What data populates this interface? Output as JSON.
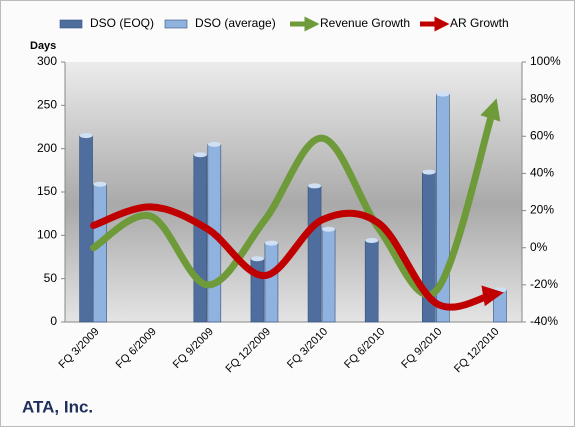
{
  "chart_data": {
    "type": "bar-line",
    "title": "ATA, Inc.",
    "ylabel": "Days",
    "categories": [
      "FQ 3/2009",
      "FQ 6/2009",
      "FQ 9/2009",
      "FQ 12/2009",
      "FQ 3/2010",
      "FQ 6/2010",
      "FQ 9/2010",
      "FQ 12/2010"
    ],
    "ylim": [
      0,
      300
    ],
    "yticks": [
      0,
      50,
      100,
      150,
      200,
      250,
      300
    ],
    "y2lim": [
      -40,
      100
    ],
    "y2ticks": [
      {
        "value": -40,
        "label": "-40%"
      },
      {
        "value": -20,
        "label": "-20%"
      },
      {
        "value": 0,
        "label": "0%"
      },
      {
        "value": 20,
        "label": "20%"
      },
      {
        "value": 40,
        "label": "40%"
      },
      {
        "value": 60,
        "label": "60%"
      },
      {
        "value": 80,
        "label": "80%"
      },
      {
        "value": 100,
        "label": "100%"
      }
    ],
    "series": [
      {
        "name": "DSO (EOQ)",
        "type": "bar",
        "color": "#4f6e9e",
        "values": [
          215,
          null,
          193,
          73,
          157,
          94,
          173,
          null
        ]
      },
      {
        "name": "DSO (average)",
        "type": "bar",
        "color": "#8fb2de",
        "values": [
          159,
          null,
          205,
          91,
          107,
          null,
          263,
          37
        ]
      },
      {
        "name": "Revenue Growth",
        "type": "line",
        "axis": "y2",
        "color": "#6f9a3a",
        "values": [
          0,
          17,
          -20,
          15,
          59,
          10,
          -23,
          75
        ]
      },
      {
        "name": "AR Growth",
        "type": "line",
        "axis": "y2",
        "color": "#c00000",
        "values": [
          12,
          22,
          10,
          -15,
          15,
          13,
          -30,
          -25
        ]
      }
    ]
  }
}
